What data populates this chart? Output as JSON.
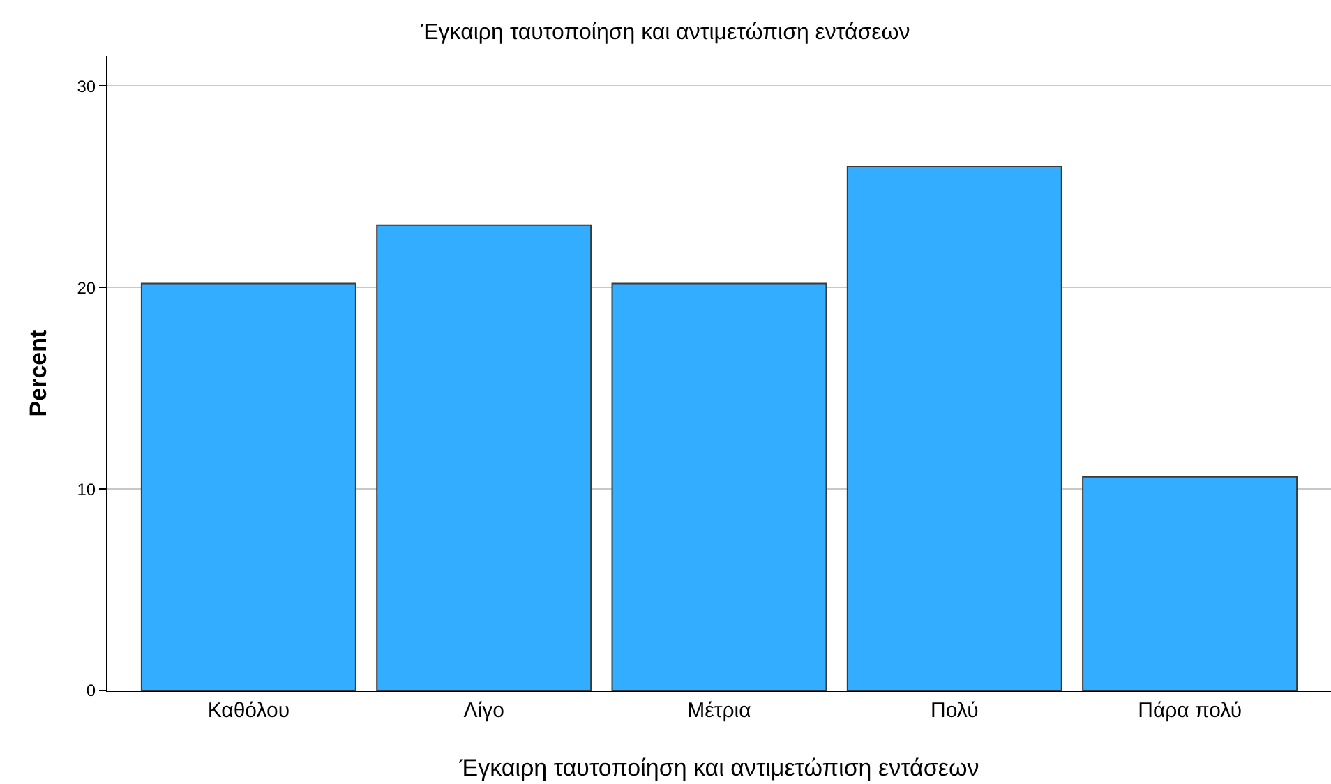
{
  "chart_data": {
    "type": "bar",
    "title": "Έγκαιρη ταυτοποίηση και αντιμετώπιση εντάσεων",
    "xlabel": "Έγκαιρη ταυτοποίηση και αντιμετώπιση εντάσεων",
    "ylabel": "Percent",
    "categories": [
      "Καθόλου",
      "Λίγο",
      "Μέτρια",
      "Πολύ",
      "Πάρα πολύ"
    ],
    "values": [
      20.2,
      23.1,
      20.2,
      26.0,
      10.6
    ],
    "color": "#33adff",
    "ylim": [
      0,
      31.5
    ],
    "yticks": [
      0,
      10,
      20,
      30
    ],
    "grid": "y"
  }
}
